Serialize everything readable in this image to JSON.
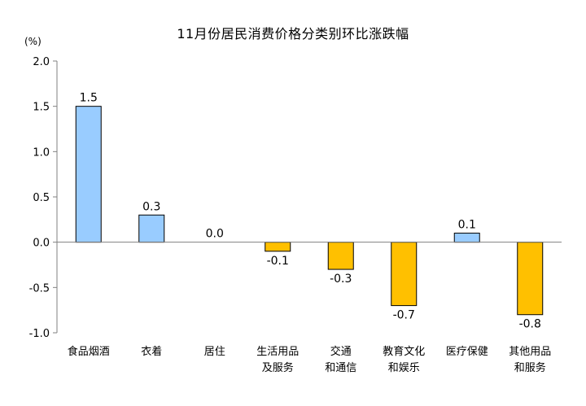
{
  "chart_data": {
    "type": "bar",
    "title": "11月份居民消费价格分类别环比涨跌幅",
    "unit": "(%)",
    "categories": [
      [
        "食品烟酒"
      ],
      [
        "衣着"
      ],
      [
        "居住"
      ],
      [
        "生活用品",
        "及服务"
      ],
      [
        "交通",
        "和通信"
      ],
      [
        "教育文化",
        "和娱乐"
      ],
      [
        "医疗保健"
      ],
      [
        "其他用品",
        "和服务"
      ]
    ],
    "values": [
      1.5,
      0.3,
      0.0,
      -0.1,
      -0.3,
      -0.7,
      0.1,
      -0.8
    ],
    "value_labels": [
      "1.5",
      "0.3",
      "0.0",
      "-0.1",
      "-0.3",
      "-0.7",
      "0.1",
      "-0.8"
    ],
    "ylim": [
      -1.0,
      2.0
    ],
    "yticks": [
      "2.0",
      "1.5",
      "1.0",
      "0.5",
      "0.0",
      "-0.5",
      "-1.0"
    ],
    "ytick_values": [
      2.0,
      1.5,
      1.0,
      0.5,
      0.0,
      -0.5,
      -1.0
    ],
    "colors": {
      "positive": "#99CCFF",
      "negative": "#FFC000",
      "stroke": "#000000"
    },
    "grid": false
  }
}
